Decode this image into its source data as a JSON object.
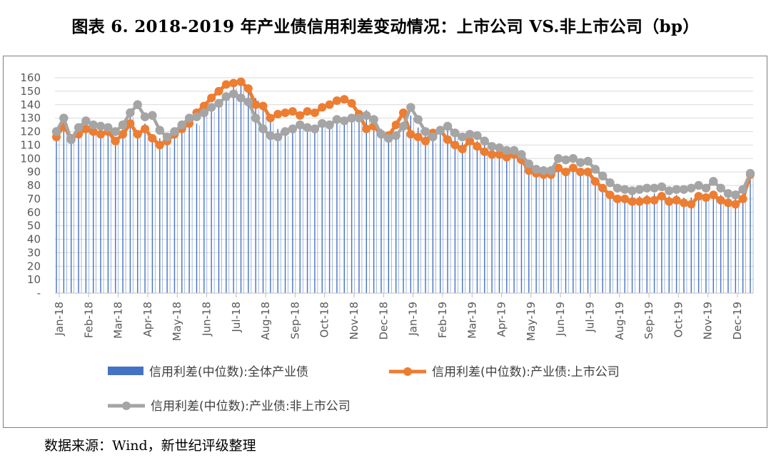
{
  "title": "图表 6. 2018-2019 年产业债信用利差变动情况：上市公司 VS.非上市公司（bp）",
  "source": "数据来源：Wind，新世纪评级整理",
  "colors": {
    "bar": "#4472c4",
    "listed": "#ed7d31",
    "unlisted": "#a5a5a5",
    "grid": "#d9d9d9",
    "axis_text": "#595959"
  },
  "chart_data": {
    "type": "bar",
    "title": "",
    "xlabel": "",
    "ylabel": "",
    "ylim": [
      0,
      160
    ],
    "yticks": [
      "-",
      "10",
      "20",
      "30",
      "40",
      "50",
      "60",
      "70",
      "80",
      "90",
      "100",
      "110",
      "120",
      "130",
      "140",
      "150",
      "160"
    ],
    "x_tick_labels": [
      "Jan-18",
      "Feb-18",
      "Mar-18",
      "Apr-18",
      "May-18",
      "Jun-18",
      "Jul-18",
      "Aug-18",
      "Sep-18",
      "Oct-18",
      "Nov-18",
      "Dec-18",
      "Jan-19",
      "Feb-19",
      "Mar-19",
      "Apr-19",
      "May-19",
      "Jun-19",
      "Jul-19",
      "Aug-19",
      "Sep-19",
      "Oct-19",
      "Nov-19",
      "Dec-19"
    ],
    "grid": true,
    "legend_position": "bottom",
    "sample_note": "one value per sample point in each series; values at Jan-18 … Dec-19 month starts plus mid-month points",
    "series": [
      {
        "name": "信用利差(中位数):全体产业债",
        "type": "bar",
        "values": [
          118,
          121,
          113,
          118,
          123,
          119,
          118,
          121,
          114,
          125,
          132,
          120,
          126,
          117,
          115,
          110,
          117,
          123,
          125,
          126,
          133,
          136,
          143,
          148,
          154,
          156,
          150,
          145,
          140,
          128,
          122,
          118,
          122,
          126,
          124,
          122,
          126,
          125,
          127,
          130,
          132,
          134,
          136,
          130,
          122,
          118,
          116,
          121,
          132,
          123,
          118,
          113,
          119,
          123,
          118,
          112,
          110,
          113,
          110,
          105,
          104,
          100,
          104,
          101,
          93,
          90,
          88,
          88,
          93,
          92,
          93,
          92,
          92,
          85,
          80,
          75,
          72,
          72,
          73,
          72,
          73,
          74,
          74,
          72,
          73,
          71,
          71,
          74,
          72,
          76,
          73,
          71,
          70,
          74,
          88
        ]
      },
      {
        "name": "信用利差(中位数):产业债:上市公司",
        "type": "line",
        "values": [
          116,
          124,
          115,
          118,
          122,
          120,
          118,
          120,
          113,
          118,
          126,
          118,
          122,
          115,
          110,
          113,
          118,
          122,
          126,
          134,
          139,
          145,
          150,
          155,
          156,
          157,
          152,
          140,
          139,
          130,
          133,
          134,
          135,
          132,
          135,
          134,
          138,
          140,
          143,
          144,
          141,
          133,
          122,
          124,
          118,
          117,
          125,
          134,
          118,
          116,
          113,
          119,
          121,
          114,
          110,
          107,
          113,
          109,
          105,
          103,
          103,
          101,
          103,
          99,
          91,
          89,
          88,
          88,
          93,
          90,
          93,
          90,
          90,
          83,
          78,
          73,
          70,
          70,
          68,
          68,
          69,
          69,
          72,
          68,
          69,
          67,
          66,
          72,
          71,
          73,
          69,
          67,
          66,
          70,
          88
        ]
      },
      {
        "name": "信用利差(中位数):产业债:非上市公司",
        "type": "line",
        "values": [
          120,
          130,
          114,
          123,
          128,
          125,
          124,
          123,
          120,
          125,
          134,
          140,
          131,
          132,
          121,
          116,
          120,
          125,
          130,
          131,
          134,
          138,
          141,
          146,
          148,
          145,
          142,
          130,
          122,
          117,
          116,
          120,
          122,
          125,
          123,
          122,
          126,
          125,
          129,
          128,
          130,
          130,
          132,
          129,
          118,
          115,
          117,
          124,
          138,
          129,
          120,
          116,
          121,
          124,
          119,
          116,
          118,
          117,
          113,
          109,
          108,
          106,
          106,
          103,
          96,
          92,
          91,
          91,
          100,
          99,
          100,
          97,
          98,
          92,
          87,
          82,
          78,
          77,
          76,
          77,
          78,
          78,
          79,
          76,
          77,
          77,
          78,
          80,
          78,
          83,
          78,
          74,
          73,
          77,
          89
        ]
      }
    ]
  }
}
